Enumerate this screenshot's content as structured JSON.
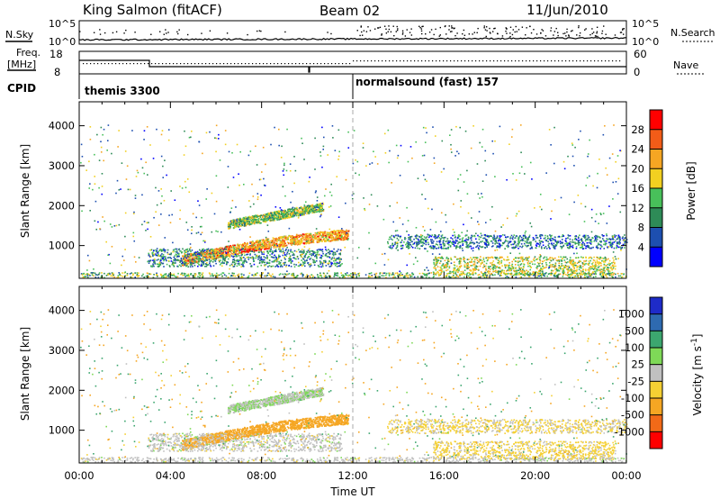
{
  "header": {
    "station": "King Salmon (fitACF)",
    "beam": "Beam 02",
    "date": "11/Jun/2010"
  },
  "noise_panel": {
    "left_label": "N.Sky",
    "right_label": "N.Search",
    "left_ticks": [
      "10^5",
      "10^0"
    ],
    "right_ticks": [
      "10^5",
      "10^0"
    ]
  },
  "freq_panel": {
    "left_label_1": "Freq.",
    "left_label_2": "[MHz]",
    "right_label": "Nave",
    "left_ticks": [
      "18",
      "8"
    ],
    "right_ticks": [
      "60",
      "0"
    ]
  },
  "cpid_panel": {
    "label": "CPID",
    "modes": [
      {
        "name": "themis 3300",
        "start_hour": 0
      },
      {
        "name": "normalsound (fast) 157",
        "start_hour": 12
      }
    ]
  },
  "power_panel": {
    "ylabel": "Slant Range [km]",
    "y_ticks": [
      "1000",
      "2000",
      "3000",
      "4000"
    ],
    "colorbar_label": "Power [dB]",
    "colorbar_ticks": [
      "4",
      "8",
      "12",
      "16",
      "20",
      "24",
      "28"
    ],
    "colors": [
      "#0000ff",
      "#1d4fb0",
      "#2e8b57",
      "#48c05a",
      "#f2d021",
      "#f5a623",
      "#f25c18",
      "#ff0000"
    ]
  },
  "velocity_panel": {
    "ylabel": "Slant Range [km]",
    "y_ticks": [
      "1000",
      "2000",
      "3000",
      "4000"
    ],
    "colorbar_label": "Velocity [m s",
    "colorbar_exp": "-1",
    "colorbar_label_end": "]",
    "colorbar_ticks": [
      "1000",
      "500",
      "100",
      "25",
      "-25",
      "-100",
      "-500",
      "-1000"
    ],
    "colors": [
      "#1e2bc8",
      "#2e6ab0",
      "#3ca66f",
      "#7ed957",
      "#c0c0c0",
      "#f5d033",
      "#f5a623",
      "#f26a18",
      "#ff0000"
    ]
  },
  "x_axis": {
    "label": "Time UT",
    "ticks": [
      "00:00",
      "04:00",
      "08:00",
      "12:00",
      "16:00",
      "20:00",
      "00:00"
    ]
  },
  "chart_data": {
    "type": "heatmap",
    "title": "King Salmon (fitACF)",
    "xlabel": "Time UT",
    "ylabel": "Slant Range [km]",
    "xlim": [
      0,
      24
    ],
    "ylim": [
      180,
      4600
    ],
    "power_scale": [
      0,
      32
    ],
    "velocity_scale": [
      -1000,
      1000
    ],
    "scatter_regions": [
      {
        "name": "upper-arc",
        "t": [
          6.5,
          10.7
        ],
        "r": [
          1450,
          1950
        ],
        "power": 14,
        "velocity": 20
      },
      {
        "name": "main-arc",
        "t": [
          4.5,
          11.8
        ],
        "r": [
          550,
          1250
        ],
        "power": 22,
        "velocity": -140
      },
      {
        "name": "near-band",
        "t": [
          3.0,
          11.5
        ],
        "r": [
          450,
          900
        ],
        "power": 10,
        "velocity": 0
      },
      {
        "name": "afternoon-band",
        "t": [
          13.5,
          24.0
        ],
        "r": [
          900,
          1250
        ],
        "power": 9,
        "velocity": -30
      },
      {
        "name": "evening-band",
        "t": [
          15.5,
          23.5
        ],
        "r": [
          250,
          700
        ],
        "power": 17,
        "velocity": -40
      },
      {
        "name": "ground-strip",
        "t": [
          0.0,
          24.0
        ],
        "r": [
          180,
          300
        ],
        "power": 14,
        "velocity": 0
      }
    ]
  }
}
